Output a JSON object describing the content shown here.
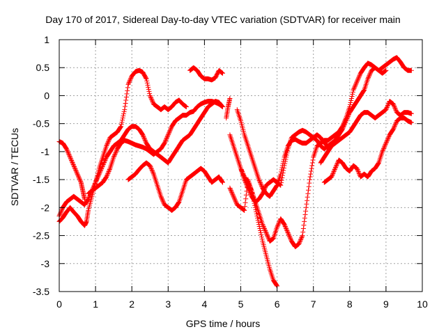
{
  "chart_data": {
    "type": "scatter",
    "title": "Day 170 of 2017, Sidereal Day-to-day VTEC variation (SDTVAR) for receiver main",
    "xlabel": "GPS time / hours",
    "ylabel": "SDTVAR / TECUs",
    "xlim": [
      0,
      10
    ],
    "ylim": [
      -3.5,
      1
    ],
    "x_ticks": [
      "0",
      "1",
      "2",
      "3",
      "4",
      "5",
      "6",
      "7",
      "8",
      "9",
      "10"
    ],
    "y_ticks": [
      "-3.5",
      "-3",
      "-2.5",
      "-2",
      "-1.5",
      "-1",
      "-0.5",
      "0",
      "0.5",
      "1"
    ],
    "grid": true,
    "marker": "+",
    "color": "#ff0000",
    "series": [
      {
        "x": [
          0,
          0.1,
          0.2,
          0.3,
          0.4,
          0.5,
          0.6,
          0.65,
          0.7
        ],
        "y": [
          -0.82,
          -0.85,
          -0.95,
          -1.1,
          -1.25,
          -1.4,
          -1.55,
          -1.7,
          -1.85
        ]
      },
      {
        "x": [
          0,
          0.1,
          0.2,
          0.3,
          0.4,
          0.5,
          0.6,
          0.7,
          0.75,
          0.8,
          0.9,
          1,
          1.1,
          1.2,
          1.3,
          1.4,
          1.5,
          1.6,
          1.7,
          1.8,
          1.9,
          2,
          2.1,
          2.2,
          2.3,
          2.4,
          2.5,
          2.6,
          2.7,
          2.8,
          2.9,
          3,
          3.1,
          3.2,
          3.3,
          3.4,
          3.5
        ],
        "y": [
          -2.25,
          -2.18,
          -2.08,
          -2.0,
          -2.08,
          -2.15,
          -2.25,
          -2.32,
          -2.25,
          -2.05,
          -1.8,
          -1.55,
          -1.3,
          -1.1,
          -0.9,
          -0.75,
          -0.7,
          -0.65,
          -0.55,
          -0.25,
          0.2,
          0.35,
          0.43,
          0.45,
          0.42,
          0.3,
          0.0,
          -0.15,
          -0.2,
          -0.25,
          -0.2,
          -0.25,
          -0.2,
          -0.12,
          -0.08,
          -0.15,
          -0.2
        ]
      },
      {
        "x": [
          0,
          0.1,
          0.2,
          0.3,
          0.4,
          0.5,
          0.6,
          0.7,
          0.8,
          0.9,
          1,
          1.1,
          1.2,
          1.3,
          1.4,
          1.5,
          1.6,
          1.7,
          1.8,
          1.9,
          2,
          2.1,
          2.2,
          2.3,
          2.4,
          2.5,
          2.6,
          2.7,
          2.8,
          2.9,
          3,
          3.1,
          3.2,
          3.3,
          3.4,
          3.5,
          3.6,
          3.7,
          3.8,
          3.9,
          4,
          4.1,
          4.2,
          4.3,
          4.4,
          4.5
        ],
        "y": [
          -2.15,
          -2.0,
          -1.9,
          -1.85,
          -1.8,
          -1.85,
          -1.9,
          -1.95,
          -1.85,
          -1.7,
          -1.55,
          -1.4,
          -1.25,
          -1.1,
          -1.0,
          -0.9,
          -0.85,
          -0.8,
          -0.7,
          -0.6,
          -0.55,
          -0.55,
          -0.6,
          -0.7,
          -0.85,
          -0.95,
          -1.0,
          -1.05,
          -1.1,
          -1.15,
          -1.2,
          -1.1,
          -1.0,
          -0.9,
          -0.8,
          -0.75,
          -0.7,
          -0.6,
          -0.5,
          -0.4,
          -0.3,
          -0.2,
          -0.15,
          -0.1,
          -0.12,
          -0.2
        ]
      },
      {
        "x": [
          0.8,
          0.9,
          1,
          1.1,
          1.2,
          1.3,
          1.4,
          1.5,
          1.6,
          1.7,
          1.8,
          1.9,
          2.0,
          2.1,
          2.2,
          2.3,
          2.4,
          2.5,
          2.6,
          2.7,
          2.8,
          2.9,
          3.0,
          3.1,
          3.2,
          3.3,
          3.4,
          3.5,
          3.6,
          3.7,
          3.8,
          3.9,
          4.0,
          4.1,
          4.2,
          4.3,
          4.4,
          4.5
        ],
        "y": [
          -1.75,
          -1.7,
          -1.65,
          -1.6,
          -1.55,
          -1.45,
          -1.3,
          -1.1,
          -0.95,
          -0.85,
          -0.8,
          -0.82,
          -0.85,
          -0.88,
          -0.9,
          -0.92,
          -0.95,
          -1.0,
          -1.05,
          -1.0,
          -0.95,
          -0.85,
          -0.7,
          -0.55,
          -0.45,
          -0.4,
          -0.35,
          -0.35,
          -0.3,
          -0.28,
          -0.2,
          -0.15,
          -0.12,
          -0.1,
          -0.1,
          -0.12,
          -0.15,
          -0.2
        ]
      },
      {
        "x": [
          1.9,
          2.0,
          2.1,
          2.2,
          2.3,
          2.4,
          2.5,
          2.6,
          2.7,
          2.8,
          2.9,
          3.0,
          3.1,
          3.2,
          3.3,
          3.4,
          3.5,
          3.6,
          3.7,
          3.8,
          3.9,
          4.0,
          4.1,
          4.2,
          4.3,
          4.4,
          4.5
        ],
        "y": [
          -1.5,
          -1.45,
          -1.4,
          -1.32,
          -1.25,
          -1.2,
          -1.25,
          -1.4,
          -1.6,
          -1.8,
          -1.95,
          -2.0,
          -2.05,
          -2.0,
          -1.9,
          -1.7,
          -1.5,
          -1.45,
          -1.4,
          -1.35,
          -1.3,
          -1.35,
          -1.45,
          -1.55,
          -1.5,
          -1.45,
          -1.55
        ]
      },
      {
        "x": [
          3.6,
          3.7,
          3.8,
          3.9,
          4.0,
          4.1,
          4.2,
          4.3,
          4.4,
          4.5
        ],
        "y": [
          0.45,
          0.5,
          0.45,
          0.35,
          0.3,
          0.3,
          0.28,
          0.32,
          0.45,
          0.4
        ]
      },
      {
        "x": [
          4.6,
          4.65,
          4.7
        ],
        "y": [
          -0.4,
          -0.2,
          -0.05
        ]
      },
      {
        "x": [
          4.7,
          4.8,
          4.9,
          5.0,
          5.1,
          5.2,
          5.3,
          5.4,
          5.5,
          5.6,
          5.7,
          5.8,
          5.9,
          6.0
        ],
        "y": [
          -1.65,
          -1.8,
          -1.95,
          -2.0,
          -2.05,
          -1.5,
          -1.7,
          -2.0,
          -2.3,
          -2.6,
          -2.85,
          -3.1,
          -3.3,
          -3.4
        ]
      },
      {
        "x": [
          4.9,
          5.0,
          5.1,
          5.2,
          5.3,
          5.4,
          5.5,
          5.6,
          5.7,
          5.8,
          5.9,
          6.0,
          6.1,
          6.2,
          6.3,
          6.4,
          6.5,
          6.6,
          6.7,
          6.8,
          6.9,
          7.0,
          7.1,
          7.2,
          7.3,
          7.4,
          7.5
        ],
        "y": [
          -0.25,
          -0.45,
          -0.7,
          -0.9,
          -1.1,
          -1.3,
          -1.5,
          -1.65,
          -1.75,
          -1.8,
          -1.7,
          -1.6,
          -1.4,
          -1.1,
          -0.9,
          -0.8,
          -0.78,
          -0.82,
          -0.85,
          -0.85,
          -0.8,
          -0.75,
          -0.7,
          -0.75,
          -0.85,
          -0.9,
          -0.85
        ]
      },
      {
        "x": [
          4.7,
          4.8,
          4.9,
          5.0,
          5.1,
          5.2,
          5.3,
          5.4,
          5.5,
          5.6,
          5.7,
          5.8,
          5.9,
          6.0,
          6.1,
          6.2,
          6.3,
          6.4,
          6.5,
          6.6,
          6.7,
          6.8,
          6.9,
          7.0,
          7.1,
          7.2,
          7.3,
          7.4,
          7.5,
          7.6,
          7.7,
          7.8,
          7.9,
          8.0,
          8.1,
          8.2,
          8.3,
          8.4,
          8.5,
          8.6,
          8.7,
          8.8,
          8.9,
          9.0,
          9.1,
          9.2,
          9.3,
          9.4,
          9.5,
          9.6,
          9.7
        ],
        "y": [
          -0.7,
          -0.9,
          -1.1,
          -1.3,
          -1.45,
          -1.55,
          -1.7,
          -1.9,
          -2.1,
          -2.3,
          -2.45,
          -2.6,
          -2.55,
          -2.35,
          -2.2,
          -2.3,
          -2.45,
          -2.6,
          -2.7,
          -2.65,
          -2.5,
          -2.0,
          -1.5,
          -1.1,
          -0.9,
          -0.85,
          -0.8,
          -0.8,
          -0.75,
          -0.7,
          -0.65,
          -0.55,
          -0.4,
          -0.2,
          0.1,
          0.25,
          0.4,
          0.5,
          0.58,
          0.55,
          0.5,
          0.45,
          0.5,
          0.55,
          0.6,
          0.65,
          0.68,
          0.6,
          0.5,
          0.45,
          0.45
        ]
      },
      {
        "x": [
          5.0,
          5.1,
          5.2,
          5.3,
          5.4,
          5.5,
          5.6,
          5.7,
          5.8,
          5.9,
          6.0,
          6.1,
          6.2,
          6.3,
          6.4,
          6.5,
          6.6,
          6.7,
          6.8,
          6.9,
          7.0,
          7.1,
          7.2,
          7.3,
          7.4,
          7.5,
          7.6,
          7.7,
          7.8,
          7.9,
          8.0,
          8.1,
          8.2,
          8.3,
          8.4,
          8.5,
          8.6,
          8.7,
          8.8,
          8.9,
          9.0
        ],
        "y": [
          -1.3,
          -1.5,
          -1.65,
          -1.8,
          -1.9,
          -1.85,
          -1.75,
          -1.6,
          -1.55,
          -1.5,
          -1.55,
          -1.6,
          -1.25,
          -0.95,
          -0.75,
          -0.7,
          -0.65,
          -0.62,
          -0.65,
          -0.7,
          -0.75,
          -0.8,
          -0.9,
          -0.95,
          -0.9,
          -0.85,
          -0.8,
          -0.7,
          -0.6,
          -0.45,
          -0.3,
          -0.2,
          -0.1,
          0.0,
          0.1,
          0.3,
          0.45,
          0.5,
          0.45,
          0.4,
          0.45
        ]
      },
      {
        "x": [
          7.2,
          7.3,
          7.4,
          7.5,
          7.6,
          7.7,
          7.8,
          7.9,
          8.0,
          8.1,
          8.2,
          8.3,
          8.4,
          8.5,
          8.6,
          8.7,
          8.8,
          8.9,
          9.0,
          9.1,
          9.2,
          9.3,
          9.4,
          9.5,
          9.6,
          9.7
        ],
        "y": [
          -1.2,
          -1.1,
          -1.0,
          -0.9,
          -0.85,
          -0.8,
          -0.75,
          -0.7,
          -0.65,
          -0.55,
          -0.45,
          -0.35,
          -0.3,
          -0.3,
          -0.35,
          -0.4,
          -0.35,
          -0.3,
          -0.25,
          -0.1,
          -0.15,
          -0.3,
          -0.35,
          -0.3,
          -0.3,
          -0.32
        ]
      },
      {
        "x": [
          7.3,
          7.4,
          7.5,
          7.6,
          7.7,
          7.8,
          7.9,
          8.0,
          8.1,
          8.2,
          8.3,
          8.4,
          8.5,
          8.6,
          8.7,
          8.8,
          8.9,
          9.0,
          9.1,
          9.2,
          9.3,
          9.4,
          9.5,
          9.6,
          9.7
        ],
        "y": [
          -1.55,
          -1.5,
          -1.45,
          -1.3,
          -1.15,
          -1.2,
          -1.3,
          -1.35,
          -1.25,
          -1.3,
          -1.45,
          -1.4,
          -1.45,
          -1.35,
          -1.3,
          -1.2,
          -1.0,
          -0.85,
          -0.7,
          -0.6,
          -0.45,
          -0.4,
          -0.4,
          -0.45,
          -0.48
        ]
      }
    ]
  }
}
